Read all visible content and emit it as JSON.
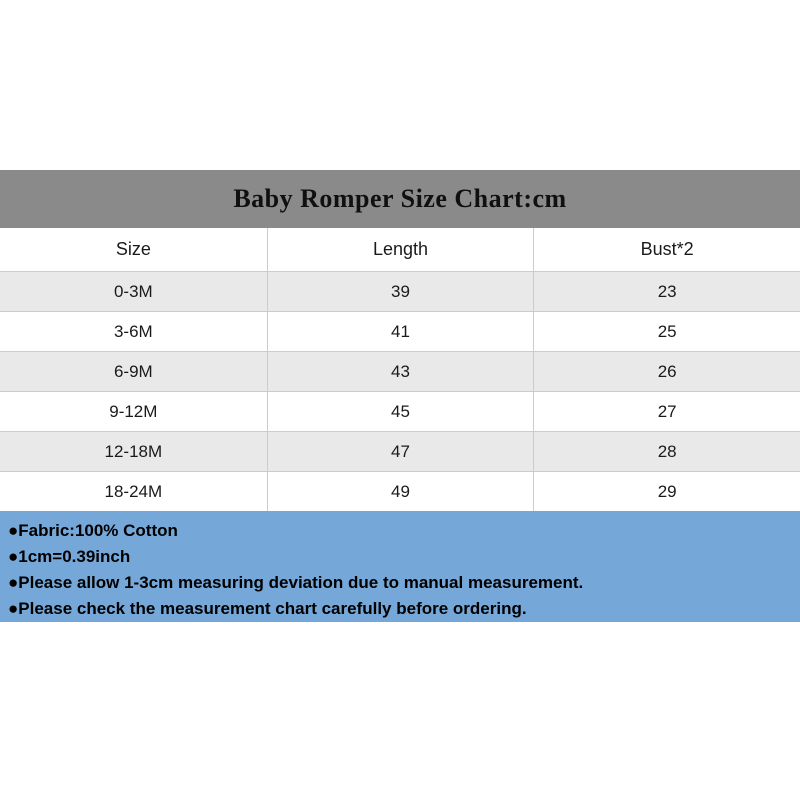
{
  "chart_data": {
    "type": "table",
    "title": "Baby Romper Size Chart:cm",
    "columns": [
      "Size",
      "Length",
      "Bust*2"
    ],
    "rows": [
      [
        "0-3M",
        "39",
        "23"
      ],
      [
        "3-6M",
        "41",
        "25"
      ],
      [
        "6-9M",
        "43",
        "26"
      ],
      [
        "9-12M",
        "45",
        "27"
      ],
      [
        "12-18M",
        "47",
        "28"
      ],
      [
        "18-24M",
        "49",
        "29"
      ]
    ],
    "layout_hints": {
      "header_background": "#8a8a8a",
      "alt_row_background": "#e9e9e9",
      "border_color": "#cccccc"
    }
  },
  "notes": {
    "background_color": "#75a8d8",
    "items": [
      "●Fabric:100% Cotton",
      "●1cm=0.39inch",
      "●Please allow 1-3cm measuring deviation due to manual measurement.",
      "●Please check the measurement chart carefully before ordering."
    ]
  }
}
